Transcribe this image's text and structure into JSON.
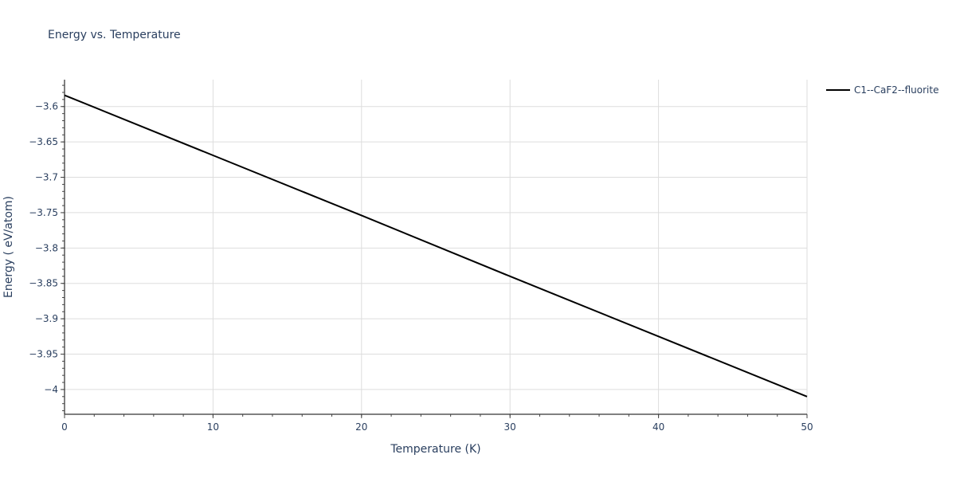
{
  "title": "Energy vs. Temperature",
  "legend": {
    "items": [
      {
        "label": "C1--CaF2--fluorite",
        "color": "#000000"
      }
    ]
  },
  "chart_data": {
    "type": "line",
    "title": "Energy vs. Temperature",
    "xlabel": "Temperature (K)",
    "ylabel": "Energy ( eV/atom)",
    "xlim": [
      0,
      50
    ],
    "ylim": [
      -4.035,
      -3.562
    ],
    "xticks": [
      0,
      10,
      20,
      30,
      40,
      50
    ],
    "xtick_labels": [
      "0",
      "10",
      "20",
      "30",
      "40",
      "50"
    ],
    "yticks": [
      -3.6,
      -3.65,
      -3.7,
      -3.75,
      -3.8,
      -3.85,
      -3.9,
      -3.95,
      -4.0
    ],
    "ytick_labels": [
      "−3.6",
      "−3.65",
      "−3.7",
      "−3.75",
      "−3.8",
      "−3.85",
      "−3.9",
      "−3.95",
      "−4"
    ],
    "grid": true,
    "legend_position": "top-right-outside",
    "series": [
      {
        "name": "C1--CaF2--fluorite",
        "color": "#000000",
        "x": [
          0,
          10,
          20,
          30,
          40,
          50
        ],
        "y": [
          -3.584,
          -3.669,
          -3.754,
          -3.84,
          -3.925,
          -4.01
        ]
      }
    ]
  }
}
